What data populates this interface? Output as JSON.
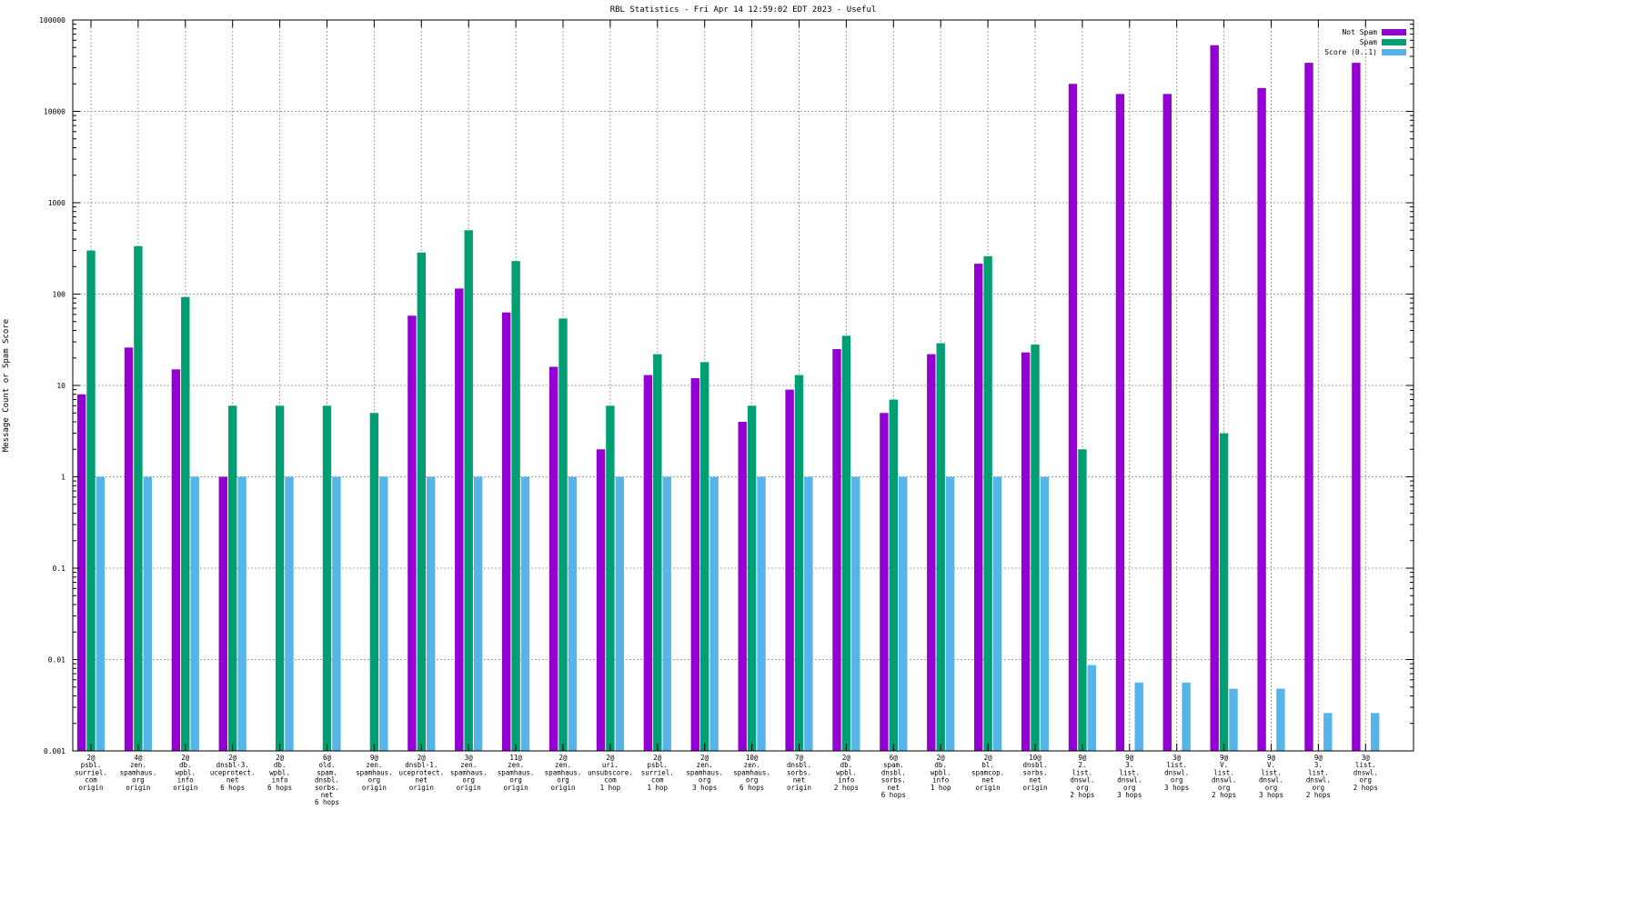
{
  "chart_data": {
    "type": "bar",
    "title": "RBL Statistics - Fri Apr 14 12:59:02 EDT 2023 - Useful",
    "xlabel": "",
    "ylabel": "Message Count or Spam Score",
    "yscale": "log",
    "ylim": [
      0.001,
      100000
    ],
    "grid": true,
    "legend_position": "top-right",
    "y_ticks": [
      0.001,
      0.01,
      0.1,
      1,
      10,
      100,
      1000,
      10000,
      100000
    ],
    "y_tick_labels": [
      "0.001",
      "0.01",
      "0.1",
      "1",
      "10",
      "100",
      "1000",
      "10000",
      "100000"
    ],
    "categories": [
      "2@ psbl. surriel. com origin",
      "4@ zen. spamhaus. org origin",
      "2@ db. wpbl. info origin",
      "2@ dnsbl-3. uceprotect. net 6 hops",
      "2@ db. wpbl. info 6 hops",
      "6@ old. spam. dnsbl. sorbs. net 6 hops",
      "9@ zen. spamhaus. org origin",
      "2@ dnsbl-1. uceprotect. net origin",
      "3@ zen. spamhaus. org origin",
      "11@ zen. spamhaus. org origin",
      "2@ zen. spamhaus. org origin",
      "2@ uri. unsubscore. com 1 hop",
      "2@ psbl. surriel. com 1 hop",
      "2@ zen. spamhaus. org 3 hops",
      "10@ zen. spamhaus. org 6 hops",
      "7@ dnsbl. sorbs. net origin",
      "2@ db. wpbl. info 2 hops",
      "6@ spam. dnsbl. sorbs. net 6 hops",
      "2@ db. wpbl. info 1 hop",
      "2@ bl. spamcop. net origin",
      "10@ dnsbl. sorbs. net origin",
      "9@ 2. list. dnswl. org 2 hops",
      "9@ 3. list. dnswl. org 3 hops",
      "3@ list. dnswl. org 3 hops",
      "9@ V. list. dnswl. org 2 hops",
      "9@ V. list. dnswl. org 3 hops",
      "9@ 3. list. dnswl. org 2 hops",
      "3@ list. dnswl. org 2 hops"
    ],
    "category_lines": [
      [
        "2@",
        "psbl.",
        "surriel.",
        "com",
        "origin"
      ],
      [
        "4@",
        "zen.",
        "spamhaus.",
        "org",
        "origin"
      ],
      [
        "2@",
        "db.",
        "wpbl.",
        "info",
        "origin"
      ],
      [
        "2@",
        "dnsbl-3.",
        "uceprotect.",
        "net",
        "6 hops"
      ],
      [
        "2@",
        "db.",
        "wpbl.",
        "info",
        "6 hops"
      ],
      [
        "6@",
        "old.",
        "spam.",
        "dnsbl.",
        "sorbs.",
        "net",
        "6 hops"
      ],
      [
        "9@",
        "zen.",
        "spamhaus.",
        "org",
        "origin"
      ],
      [
        "2@",
        "dnsbl-1.",
        "uceprotect.",
        "net",
        "origin"
      ],
      [
        "3@",
        "zen.",
        "spamhaus.",
        "org",
        "origin"
      ],
      [
        "11@",
        "zen.",
        "spamhaus.",
        "org",
        "origin"
      ],
      [
        "2@",
        "zen.",
        "spamhaus.",
        "org",
        "origin"
      ],
      [
        "2@",
        "uri.",
        "unsubscore.",
        "com",
        "1 hop"
      ],
      [
        "2@",
        "psbl.",
        "surriel.",
        "com",
        "1 hop"
      ],
      [
        "2@",
        "zen.",
        "spamhaus.",
        "org",
        "3 hops"
      ],
      [
        "10@",
        "zen.",
        "spamhaus.",
        "org",
        "6 hops"
      ],
      [
        "7@",
        "dnsbl.",
        "sorbs.",
        "net",
        "origin"
      ],
      [
        "2@",
        "db.",
        "wpbl.",
        "info",
        "2 hops"
      ],
      [
        "6@",
        "spam.",
        "dnsbl.",
        "sorbs.",
        "net",
        "6 hops"
      ],
      [
        "2@",
        "db.",
        "wpbl.",
        "info",
        "1 hop"
      ],
      [
        "2@",
        "bl.",
        "spamcop.",
        "net",
        "origin"
      ],
      [
        "10@",
        "dnsbl.",
        "sorbs.",
        "net",
        "origin"
      ],
      [
        "9@",
        "2.",
        "list.",
        "dnswl.",
        "org",
        "2 hops"
      ],
      [
        "9@",
        "3.",
        "list.",
        "dnswl.",
        "org",
        "3 hops"
      ],
      [
        "3@",
        "list.",
        "dnswl.",
        "org",
        "3 hops"
      ],
      [
        "9@",
        "V.",
        "list.",
        "dnswl.",
        "org",
        "2 hops"
      ],
      [
        "9@",
        "V.",
        "list.",
        "dnswl.",
        "org",
        "3 hops"
      ],
      [
        "9@",
        "3.",
        "list.",
        "dnswl.",
        "org",
        "2 hops"
      ],
      [
        "3@",
        "list.",
        "dnswl.",
        "org",
        "2 hops"
      ]
    ],
    "series": [
      {
        "name": "Not Spam",
        "color": "#9400d3",
        "values": [
          8,
          26,
          15,
          1,
          null,
          null,
          null,
          58,
          115,
          63,
          16,
          2,
          13,
          12,
          4,
          9,
          25,
          5,
          22,
          215,
          23,
          20000,
          15500,
          15500,
          53000,
          18000,
          34000,
          34000
        ]
      },
      {
        "name": "Spam",
        "color": "#009e73",
        "values": [
          300,
          335,
          93,
          6,
          6,
          6,
          5,
          285,
          500,
          230,
          54,
          6,
          22,
          18,
          6,
          13,
          35,
          7,
          29,
          260,
          28,
          2,
          null,
          null,
          3,
          null,
          null,
          null
        ]
      },
      {
        "name": "Score (0..1)",
        "color": "#56b4e9",
        "values": [
          1,
          1,
          1,
          1,
          1,
          1,
          1,
          1,
          1,
          1,
          1,
          1,
          1,
          1,
          1,
          1,
          1,
          1,
          1,
          1,
          1,
          0.0087,
          0.0056,
          0.0056,
          0.0048,
          0.0048,
          0.0026,
          0.0026
        ]
      }
    ]
  }
}
